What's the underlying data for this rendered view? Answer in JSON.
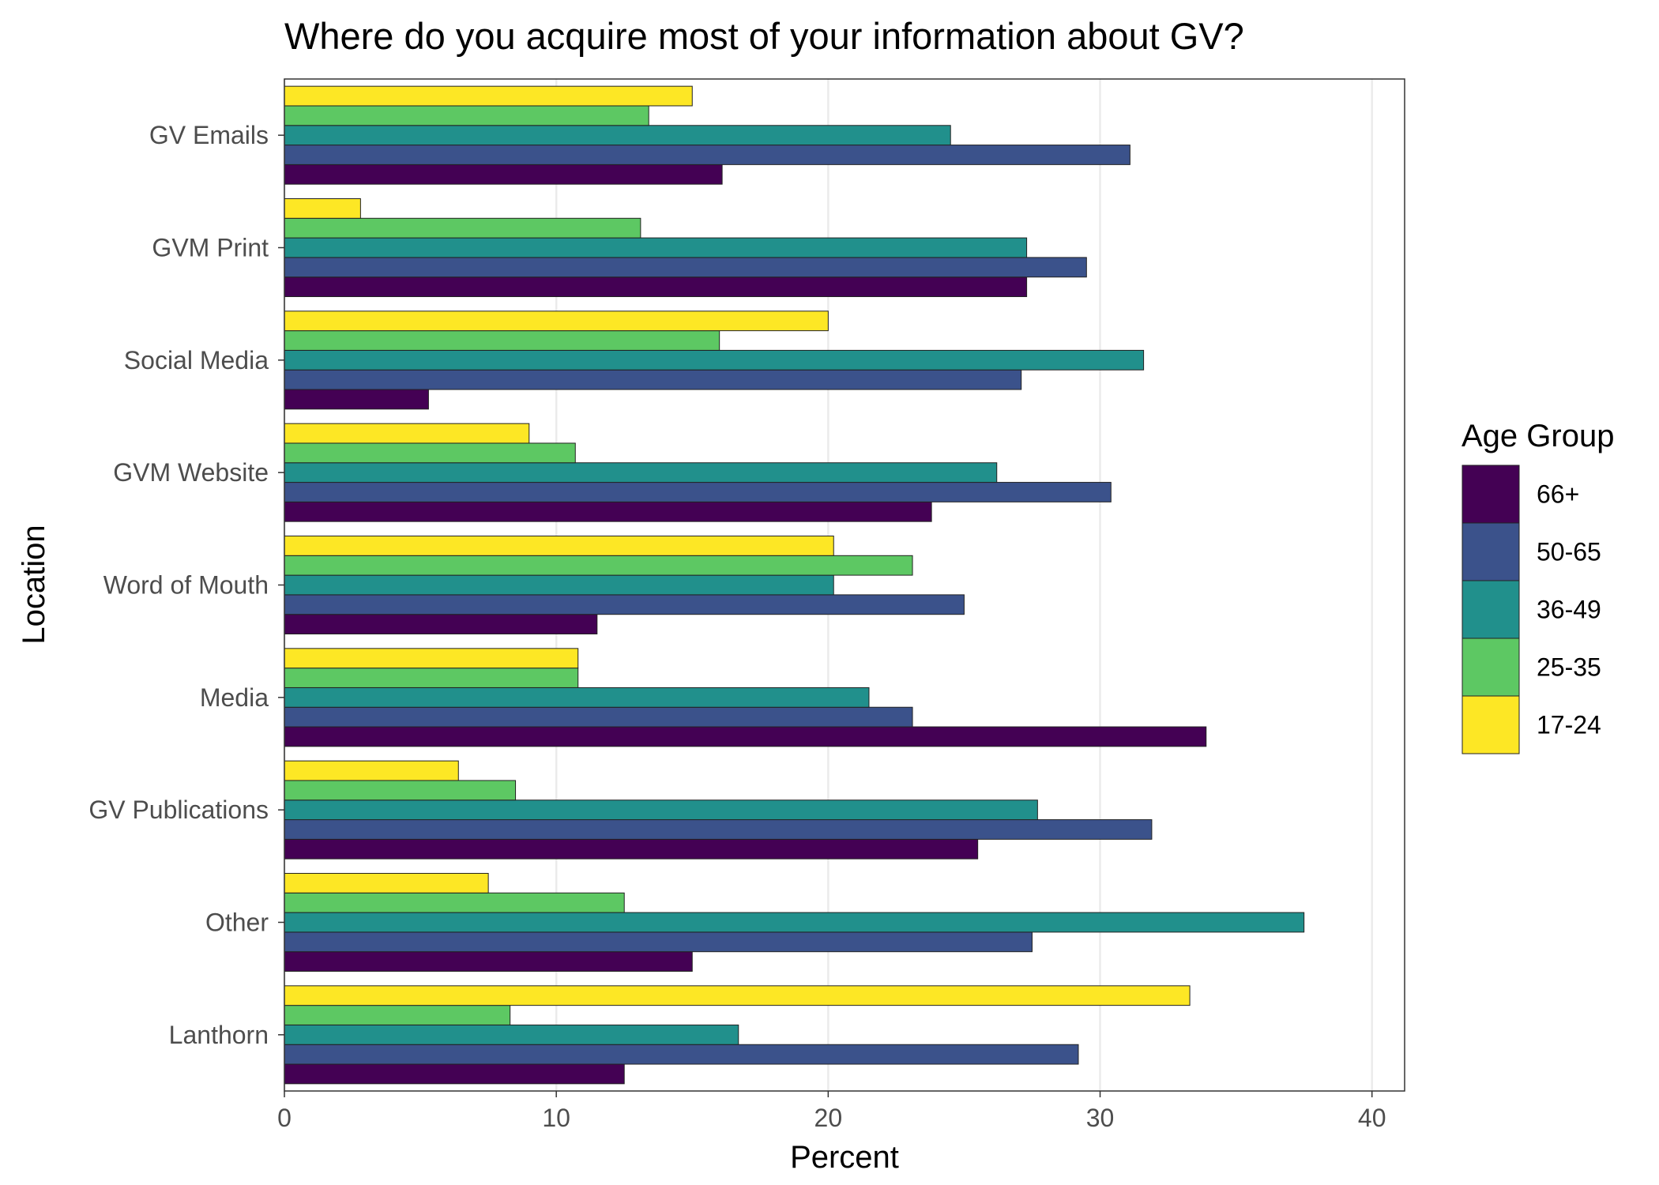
{
  "chart_data": {
    "type": "bar",
    "orientation": "horizontal",
    "title": "Where do you acquire most of your information about GV?",
    "xlabel": "Percent",
    "ylabel": "Location",
    "xlim": [
      0,
      41.2
    ],
    "x_ticks": [
      "0",
      "10",
      "20",
      "30",
      "40"
    ],
    "x_tick_values": [
      0,
      10,
      20,
      30,
      40
    ],
    "grid": "vertical major",
    "legend": {
      "title": "Age Group",
      "position": "right"
    },
    "categories": [
      "GV Emails",
      "GVM Print",
      "Social Media",
      "GVM Website",
      "Word of Mouth",
      "Media",
      "GV Publications",
      "Other",
      "Lanthorn"
    ],
    "series": [
      {
        "name": "66+",
        "color": "#440154",
        "values": [
          16.1,
          27.3,
          5.3,
          23.8,
          11.5,
          33.9,
          25.5,
          15.0,
          12.5
        ]
      },
      {
        "name": "50-65",
        "color": "#3B528B",
        "values": [
          31.1,
          29.5,
          27.1,
          30.4,
          25.0,
          23.1,
          31.9,
          27.5,
          29.2
        ]
      },
      {
        "name": "36-49",
        "color": "#21908C",
        "values": [
          24.5,
          27.3,
          31.6,
          26.2,
          20.2,
          21.5,
          27.7,
          37.5,
          16.7
        ]
      },
      {
        "name": "25-35",
        "color": "#5DC863",
        "values": [
          13.4,
          13.1,
          16.0,
          10.7,
          23.1,
          10.8,
          8.5,
          12.5,
          8.3
        ]
      },
      {
        "name": "17-24",
        "color": "#FDE725",
        "values": [
          15.0,
          2.8,
          20.0,
          9.0,
          20.2,
          10.8,
          6.4,
          7.5,
          33.3
        ]
      }
    ]
  }
}
